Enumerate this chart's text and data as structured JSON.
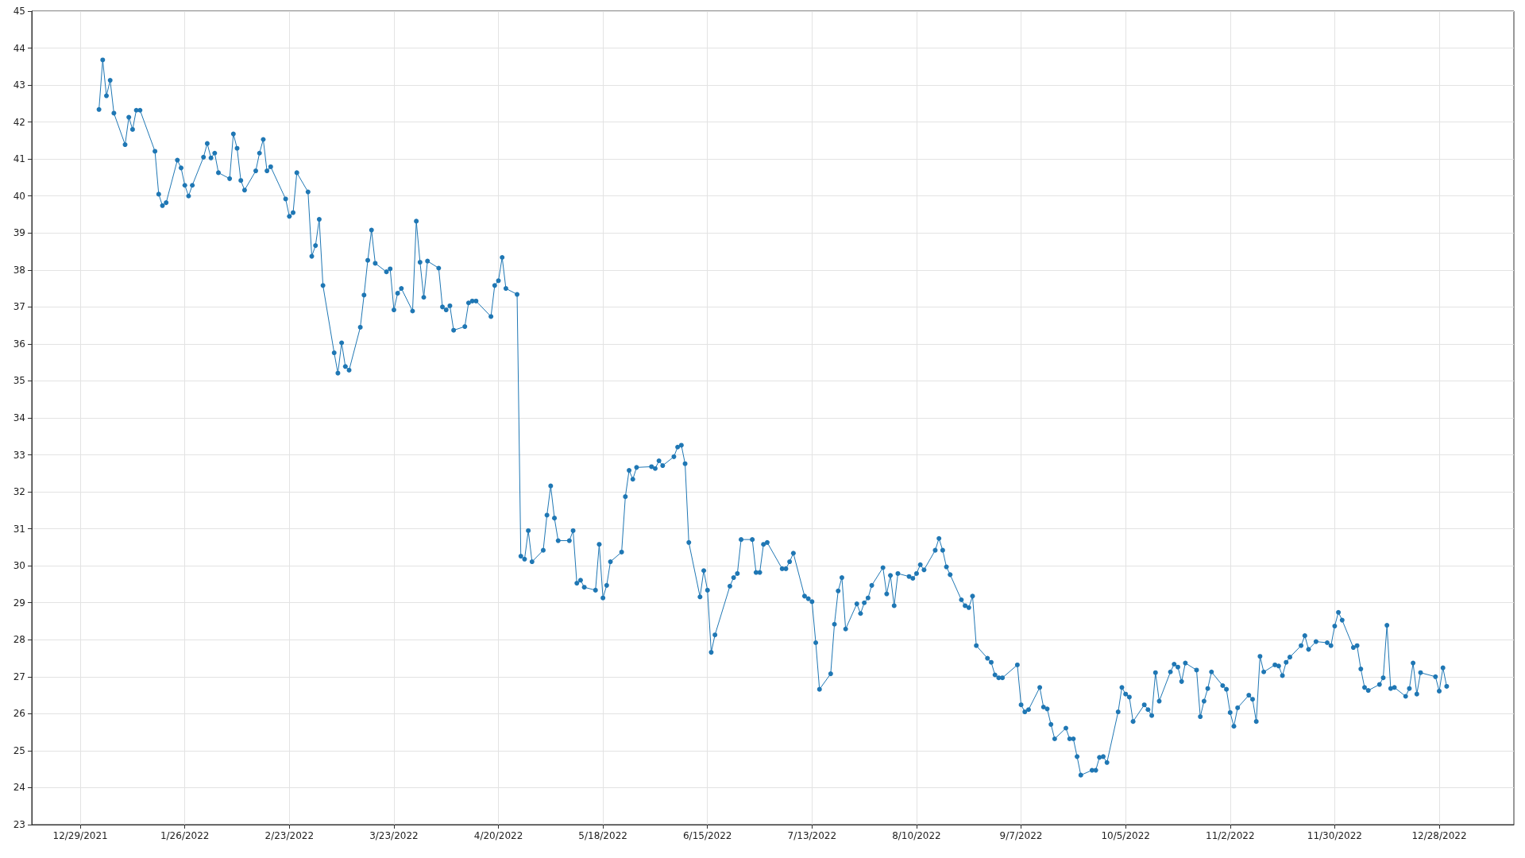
{
  "chart_data": {
    "type": "line",
    "marker": "circle",
    "grid": true,
    "xlim": [
      "2021-12-16",
      "2023-01-17"
    ],
    "xticks": [
      {
        "value": "2021-12-29",
        "label": "12/29/2021"
      },
      {
        "value": "2022-01-26",
        "label": "1/26/2022"
      },
      {
        "value": "2022-02-23",
        "label": "2/23/2022"
      },
      {
        "value": "2022-03-23",
        "label": "3/23/2022"
      },
      {
        "value": "2022-04-20",
        "label": "4/20/2022"
      },
      {
        "value": "2022-05-18",
        "label": "5/18/2022"
      },
      {
        "value": "2022-06-15",
        "label": "6/15/2022"
      },
      {
        "value": "2022-07-13",
        "label": "7/13/2022"
      },
      {
        "value": "2022-08-10",
        "label": "8/10/2022"
      },
      {
        "value": "2022-09-07",
        "label": "9/7/2022"
      },
      {
        "value": "2022-10-05",
        "label": "10/5/2022"
      },
      {
        "value": "2022-11-02",
        "label": "11/2/2022"
      },
      {
        "value": "2022-11-30",
        "label": "11/30/2022"
      },
      {
        "value": "2022-12-28",
        "label": "12/28/2022"
      }
    ],
    "ylim": [
      23,
      45
    ],
    "yticks": [
      23,
      24,
      25,
      26,
      27,
      28,
      29,
      30,
      31,
      32,
      33,
      34,
      35,
      36,
      37,
      38,
      39,
      40,
      41,
      42,
      43,
      44,
      45
    ],
    "x": [
      "2022-01-03",
      "2022-01-04",
      "2022-01-05",
      "2022-01-06",
      "2022-01-07",
      "2022-01-10",
      "2022-01-11",
      "2022-01-12",
      "2022-01-13",
      "2022-01-14",
      "2022-01-18",
      "2022-01-19",
      "2022-01-20",
      "2022-01-21",
      "2022-01-24",
      "2022-01-25",
      "2022-01-26",
      "2022-01-27",
      "2022-01-28",
      "2022-01-31",
      "2022-02-01",
      "2022-02-02",
      "2022-02-03",
      "2022-02-04",
      "2022-02-07",
      "2022-02-08",
      "2022-02-09",
      "2022-02-10",
      "2022-02-11",
      "2022-02-14",
      "2022-02-15",
      "2022-02-16",
      "2022-02-17",
      "2022-02-18",
      "2022-02-22",
      "2022-02-23",
      "2022-02-24",
      "2022-02-25",
      "2022-02-28",
      "2022-03-01",
      "2022-03-02",
      "2022-03-03",
      "2022-03-04",
      "2022-03-07",
      "2022-03-08",
      "2022-03-09",
      "2022-03-10",
      "2022-03-11",
      "2022-03-14",
      "2022-03-15",
      "2022-03-16",
      "2022-03-17",
      "2022-03-18",
      "2022-03-21",
      "2022-03-22",
      "2022-03-23",
      "2022-03-24",
      "2022-03-25",
      "2022-03-28",
      "2022-03-29",
      "2022-03-30",
      "2022-03-31",
      "2022-04-01",
      "2022-04-04",
      "2022-04-05",
      "2022-04-06",
      "2022-04-07",
      "2022-04-08",
      "2022-04-11",
      "2022-04-12",
      "2022-04-13",
      "2022-04-14",
      "2022-04-18",
      "2022-04-19",
      "2022-04-20",
      "2022-04-21",
      "2022-04-22",
      "2022-04-25",
      "2022-04-26",
      "2022-04-27",
      "2022-04-28",
      "2022-04-29",
      "2022-05-02",
      "2022-05-03",
      "2022-05-04",
      "2022-05-05",
      "2022-05-06",
      "2022-05-09",
      "2022-05-10",
      "2022-05-11",
      "2022-05-12",
      "2022-05-13",
      "2022-05-16",
      "2022-05-17",
      "2022-05-18",
      "2022-05-19",
      "2022-05-20",
      "2022-05-23",
      "2022-05-24",
      "2022-05-25",
      "2022-05-26",
      "2022-05-27",
      "2022-05-31",
      "2022-06-01",
      "2022-06-02",
      "2022-06-03",
      "2022-06-06",
      "2022-06-07",
      "2022-06-08",
      "2022-06-09",
      "2022-06-10",
      "2022-06-13",
      "2022-06-14",
      "2022-06-15",
      "2022-06-16",
      "2022-06-17",
      "2022-06-21",
      "2022-06-22",
      "2022-06-23",
      "2022-06-24",
      "2022-06-27",
      "2022-06-28",
      "2022-06-29",
      "2022-06-30",
      "2022-07-01",
      "2022-07-05",
      "2022-07-06",
      "2022-07-07",
      "2022-07-08",
      "2022-07-11",
      "2022-07-12",
      "2022-07-13",
      "2022-07-14",
      "2022-07-15",
      "2022-07-18",
      "2022-07-19",
      "2022-07-20",
      "2022-07-21",
      "2022-07-22",
      "2022-07-25",
      "2022-07-26",
      "2022-07-27",
      "2022-07-28",
      "2022-07-29",
      "2022-08-01",
      "2022-08-02",
      "2022-08-03",
      "2022-08-04",
      "2022-08-05",
      "2022-08-08",
      "2022-08-09",
      "2022-08-10",
      "2022-08-11",
      "2022-08-12",
      "2022-08-15",
      "2022-08-16",
      "2022-08-17",
      "2022-08-18",
      "2022-08-19",
      "2022-08-22",
      "2022-08-23",
      "2022-08-24",
      "2022-08-25",
      "2022-08-26",
      "2022-08-29",
      "2022-08-30",
      "2022-08-31",
      "2022-09-01",
      "2022-09-02",
      "2022-09-06",
      "2022-09-07",
      "2022-09-08",
      "2022-09-09",
      "2022-09-12",
      "2022-09-13",
      "2022-09-14",
      "2022-09-15",
      "2022-09-16",
      "2022-09-19",
      "2022-09-20",
      "2022-09-21",
      "2022-09-22",
      "2022-09-23",
      "2022-09-26",
      "2022-09-27",
      "2022-09-28",
      "2022-09-29",
      "2022-09-30",
      "2022-10-03",
      "2022-10-04",
      "2022-10-05",
      "2022-10-06",
      "2022-10-07",
      "2022-10-10",
      "2022-10-11",
      "2022-10-12",
      "2022-10-13",
      "2022-10-14",
      "2022-10-17",
      "2022-10-18",
      "2022-10-19",
      "2022-10-20",
      "2022-10-21",
      "2022-10-24",
      "2022-10-25",
      "2022-10-26",
      "2022-10-27",
      "2022-10-28",
      "2022-10-31",
      "2022-11-01",
      "2022-11-02",
      "2022-11-03",
      "2022-11-04",
      "2022-11-07",
      "2022-11-08",
      "2022-11-09",
      "2022-11-10",
      "2022-11-11",
      "2022-11-14",
      "2022-11-15",
      "2022-11-16",
      "2022-11-17",
      "2022-11-18",
      "2022-11-21",
      "2022-11-22",
      "2022-11-23",
      "2022-11-25",
      "2022-11-28",
      "2022-11-29",
      "2022-11-30",
      "2022-12-01",
      "2022-12-02",
      "2022-12-05",
      "2022-12-06",
      "2022-12-07",
      "2022-12-08",
      "2022-12-09",
      "2022-12-12",
      "2022-12-13",
      "2022-12-14",
      "2022-12-15",
      "2022-12-16",
      "2022-12-19",
      "2022-12-20",
      "2022-12-21",
      "2022-12-22",
      "2022-12-23",
      "2022-12-27",
      "2022-12-28",
      "2022-12-29",
      "2022-12-30"
    ],
    "series": [
      {
        "color": "#1f77b4",
        "values": [
          42.34,
          43.68,
          42.71,
          43.13,
          42.24,
          41.39,
          42.13,
          41.8,
          42.32,
          42.32,
          41.21,
          40.05,
          39.74,
          39.82,
          40.97,
          40.76,
          40.29,
          40.0,
          40.29,
          41.05,
          41.42,
          41.03,
          41.16,
          40.63,
          40.47,
          41.68,
          41.29,
          40.42,
          40.16,
          40.68,
          41.16,
          41.53,
          40.68,
          40.79,
          39.92,
          39.45,
          39.55,
          40.63,
          40.11,
          38.37,
          38.66,
          39.37,
          37.58,
          35.76,
          35.21,
          36.03,
          35.39,
          35.29,
          36.45,
          37.32,
          38.26,
          39.08,
          38.18,
          37.95,
          38.03,
          36.92,
          37.37,
          37.5,
          36.89,
          39.32,
          38.21,
          37.26,
          38.24,
          38.05,
          37.0,
          36.92,
          37.03,
          36.37,
          36.47,
          37.11,
          37.16,
          37.16,
          36.74,
          37.58,
          37.71,
          38.34,
          37.5,
          37.34,
          30.26,
          30.18,
          30.95,
          30.11,
          30.42,
          31.37,
          32.16,
          31.29,
          30.68,
          30.68,
          30.95,
          29.53,
          29.61,
          29.42,
          29.34,
          30.58,
          29.13,
          29.47,
          30.11,
          30.37,
          31.87,
          32.58,
          32.34,
          32.66,
          32.68,
          32.63,
          32.84,
          32.71,
          32.95,
          33.21,
          33.26,
          32.76,
          30.63,
          29.16,
          29.87,
          29.34,
          27.66,
          28.13,
          29.45,
          29.68,
          29.79,
          30.71,
          30.71,
          29.82,
          29.82,
          30.58,
          30.63,
          29.92,
          29.92,
          30.11,
          30.34,
          29.18,
          29.11,
          29.03,
          27.92,
          26.66,
          27.08,
          28.42,
          29.32,
          29.68,
          28.29,
          28.97,
          28.71,
          29.0,
          29.13,
          29.47,
          29.95,
          29.24,
          29.74,
          28.92,
          29.79,
          29.71,
          29.66,
          29.79,
          30.03,
          29.89,
          30.42,
          30.74,
          30.42,
          29.97,
          29.76,
          29.08,
          28.92,
          28.87,
          29.18,
          27.84,
          27.5,
          27.39,
          27.05,
          26.97,
          26.97,
          27.32,
          26.24,
          26.05,
          26.11,
          26.71,
          26.18,
          26.13,
          25.71,
          25.32,
          25.61,
          25.32,
          25.32,
          24.84,
          24.34,
          24.47,
          24.47,
          24.82,
          24.84,
          24.68,
          26.05,
          26.71,
          26.53,
          26.45,
          25.79,
          26.24,
          26.11,
          25.95,
          27.11,
          26.34,
          27.13,
          27.34,
          27.26,
          26.87,
          27.37,
          27.18,
          25.92,
          26.34,
          26.68,
          27.13,
          26.76,
          26.66,
          26.03,
          25.66,
          26.16,
          26.5,
          26.39,
          25.79,
          27.55,
          27.13,
          27.32,
          27.29,
          27.03,
          27.39,
          27.53,
          27.84,
          28.11,
          27.74,
          27.95,
          27.92,
          27.84,
          28.37,
          28.74,
          28.53,
          27.79,
          27.84,
          27.21,
          26.71,
          26.63,
          26.79,
          26.97,
          28.39,
          26.68,
          26.71,
          26.47,
          26.68,
          27.37,
          26.53,
          27.11,
          27.0,
          26.61,
          27.24,
          26.74
        ]
      }
    ]
  }
}
